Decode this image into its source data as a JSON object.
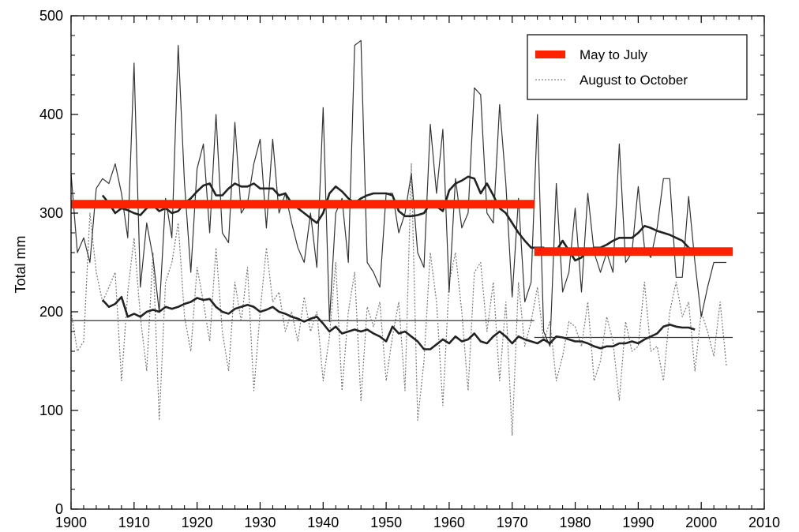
{
  "chart_data": {
    "type": "line",
    "title": "",
    "xlabel": "",
    "ylabel": "Total mm",
    "xlim": [
      1900,
      2010
    ],
    "ylim": [
      0,
      500
    ],
    "xticks": [
      1900,
      1910,
      1920,
      1930,
      1940,
      1950,
      1960,
      1970,
      1980,
      1990,
      2000,
      2010
    ],
    "yticks": [
      0,
      100,
      200,
      300,
      400,
      500
    ],
    "grid": false,
    "legend_position": "top-right",
    "legend": [
      {
        "label": "May to July",
        "style": "thick-solid",
        "color": "#ff2200"
      },
      {
        "label": "August to October",
        "style": "dotted",
        "color": "#888888"
      }
    ],
    "series": [
      {
        "name": "May to July",
        "style": "thin-solid",
        "color": "#333333",
        "x": [
          1900,
          1901,
          1902,
          1903,
          1904,
          1905,
          1906,
          1907,
          1908,
          1909,
          1910,
          1911,
          1912,
          1913,
          1914,
          1915,
          1916,
          1917,
          1918,
          1919,
          1920,
          1921,
          1922,
          1923,
          1924,
          1925,
          1926,
          1927,
          1928,
          1929,
          1930,
          1931,
          1932,
          1933,
          1934,
          1935,
          1936,
          1937,
          1938,
          1939,
          1940,
          1941,
          1942,
          1943,
          1944,
          1945,
          1946,
          1947,
          1948,
          1949,
          1950,
          1951,
          1952,
          1953,
          1954,
          1955,
          1956,
          1957,
          1958,
          1959,
          1960,
          1961,
          1962,
          1963,
          1964,
          1965,
          1966,
          1967,
          1968,
          1969,
          1970,
          1971,
          1972,
          1973,
          1974,
          1975,
          1976,
          1977,
          1978,
          1979,
          1980,
          1981,
          1982,
          1983,
          1984,
          1985,
          1986,
          1987,
          1988,
          1989,
          1990,
          1991,
          1992,
          1993,
          1994,
          1995,
          1996,
          1997,
          1998,
          1999,
          2000,
          2001,
          2002,
          2003,
          2004
        ],
        "values": [
          340,
          260,
          275,
          250,
          325,
          335,
          330,
          350,
          320,
          275,
          452,
          225,
          290,
          255,
          200,
          315,
          275,
          470,
          330,
          240,
          345,
          370,
          280,
          400,
          280,
          270,
          392,
          300,
          310,
          350,
          375,
          285,
          375,
          300,
          320,
          290,
          265,
          250,
          300,
          245,
          407,
          190,
          300,
          315,
          250,
          470,
          475,
          250,
          240,
          225,
          320,
          320,
          280,
          300,
          340,
          260,
          245,
          390,
          320,
          385,
          220,
          335,
          285,
          300,
          427,
          420,
          300,
          290,
          410,
          330,
          215,
          315,
          210,
          230,
          400,
          180,
          165,
          330,
          220,
          240,
          305,
          220,
          320,
          260,
          240,
          260,
          240,
          370,
          250,
          260,
          327,
          265,
          255,
          285,
          335,
          335,
          235,
          235,
          317,
          250,
          195,
          225,
          250,
          250,
          250
        ]
      },
      {
        "name": "August to October",
        "style": "dotted",
        "color": "#777777",
        "x": [
          1900,
          1901,
          1902,
          1903,
          1904,
          1905,
          1906,
          1907,
          1908,
          1909,
          1910,
          1911,
          1912,
          1913,
          1914,
          1915,
          1916,
          1917,
          1918,
          1919,
          1920,
          1921,
          1922,
          1923,
          1924,
          1925,
          1926,
          1927,
          1928,
          1929,
          1930,
          1931,
          1932,
          1933,
          1934,
          1935,
          1936,
          1937,
          1938,
          1939,
          1940,
          1941,
          1942,
          1943,
          1944,
          1945,
          1946,
          1947,
          1948,
          1949,
          1950,
          1951,
          1952,
          1953,
          1954,
          1955,
          1956,
          1957,
          1958,
          1959,
          1960,
          1961,
          1962,
          1963,
          1964,
          1965,
          1966,
          1967,
          1968,
          1969,
          1970,
          1971,
          1972,
          1973,
          1974,
          1975,
          1976,
          1977,
          1978,
          1979,
          1980,
          1981,
          1982,
          1983,
          1984,
          1985,
          1986,
          1987,
          1988,
          1989,
          1990,
          1991,
          1992,
          1993,
          1994,
          1995,
          1996,
          1997,
          1998,
          1999,
          2000,
          2001,
          2002,
          2003,
          2004
        ],
        "values": [
          200,
          160,
          170,
          300,
          240,
          210,
          225,
          240,
          130,
          220,
          275,
          195,
          140,
          260,
          90,
          230,
          250,
          290,
          195,
          160,
          245,
          210,
          170,
          265,
          180,
          140,
          230,
          190,
          245,
          120,
          200,
          265,
          210,
          220,
          180,
          200,
          170,
          215,
          180,
          200,
          130,
          175,
          250,
          120,
          200,
          240,
          110,
          205,
          185,
          210,
          130,
          175,
          210,
          120,
          350,
          90,
          150,
          260,
          210,
          105,
          230,
          260,
          200,
          120,
          240,
          250,
          180,
          230,
          130,
          210,
          75,
          230,
          165,
          190,
          225,
          170,
          190,
          130,
          155,
          190,
          185,
          165,
          210,
          130,
          150,
          195,
          170,
          110,
          190,
          160,
          165,
          230,
          160,
          165,
          130,
          200,
          230,
          195,
          210,
          140,
          200,
          180,
          155,
          210,
          145
        ]
      },
      {
        "name": "",
        "style": "smoothed-thick",
        "color": "#222222",
        "x": [
          1905,
          1906,
          1907,
          1908,
          1909,
          1910,
          1911,
          1912,
          1913,
          1914,
          1915,
          1916,
          1917,
          1918,
          1919,
          1920,
          1921,
          1922,
          1923,
          1924,
          1925,
          1926,
          1927,
          1928,
          1929,
          1930,
          1931,
          1932,
          1933,
          1934,
          1935,
          1936,
          1937,
          1938,
          1939,
          1940,
          1941,
          1942,
          1943,
          1944,
          1945,
          1946,
          1947,
          1948,
          1949,
          1950,
          1951,
          1952,
          1953,
          1954,
          1955,
          1956,
          1957,
          1958,
          1959,
          1960,
          1961,
          1962,
          1963,
          1964,
          1965,
          1966,
          1967,
          1968,
          1969,
          1970,
          1971,
          1972,
          1973,
          1974,
          1975,
          1976,
          1977,
          1978,
          1979,
          1980,
          1981,
          1982,
          1983,
          1984,
          1985,
          1986,
          1987,
          1988,
          1989,
          1990,
          1991,
          1992,
          1993,
          1994,
          1995,
          1996,
          1997,
          1998,
          1999
        ],
        "values": [
          318,
          310,
          300,
          305,
          303,
          300,
          298,
          305,
          308,
          302,
          305,
          300,
          302,
          310,
          315,
          322,
          328,
          330,
          318,
          318,
          325,
          330,
          327,
          327,
          330,
          325,
          325,
          325,
          318,
          320,
          310,
          305,
          300,
          295,
          290,
          300,
          320,
          327,
          322,
          315,
          310,
          315,
          318,
          320,
          320,
          320,
          318,
          302,
          297,
          297,
          298,
          300,
          310,
          307,
          302,
          323,
          330,
          333,
          337,
          335,
          320,
          330,
          318,
          305,
          300,
          290,
          280,
          272,
          265,
          265,
          265,
          258,
          262,
          272,
          262,
          252,
          255,
          262,
          265,
          265,
          268,
          272,
          275,
          275,
          275,
          280,
          287,
          285,
          282,
          280,
          278,
          275,
          272,
          265,
          262
        ]
      },
      {
        "name": "",
        "style": "smoothed-thick",
        "color": "#222222",
        "x": [
          1905,
          1906,
          1907,
          1908,
          1909,
          1910,
          1911,
          1912,
          1913,
          1914,
          1915,
          1916,
          1917,
          1918,
          1919,
          1920,
          1921,
          1922,
          1923,
          1924,
          1925,
          1926,
          1927,
          1928,
          1929,
          1930,
          1931,
          1932,
          1933,
          1934,
          1935,
          1936,
          1937,
          1938,
          1939,
          1940,
          1941,
          1942,
          1943,
          1944,
          1945,
          1946,
          1947,
          1948,
          1949,
          1950,
          1951,
          1952,
          1953,
          1954,
          1955,
          1956,
          1957,
          1958,
          1959,
          1960,
          1961,
          1962,
          1963,
          1964,
          1965,
          1966,
          1967,
          1968,
          1969,
          1970,
          1971,
          1972,
          1973,
          1974,
          1975,
          1976,
          1977,
          1978,
          1979,
          1980,
          1981,
          1982,
          1983,
          1984,
          1985,
          1986,
          1987,
          1988,
          1989,
          1990,
          1991,
          1992,
          1993,
          1994,
          1995,
          1996,
          1997,
          1998,
          1999
        ],
        "values": [
          212,
          205,
          208,
          215,
          195,
          198,
          195,
          200,
          202,
          200,
          205,
          203,
          205,
          208,
          210,
          214,
          212,
          213,
          205,
          200,
          198,
          203,
          205,
          207,
          205,
          200,
          202,
          205,
          200,
          198,
          195,
          193,
          190,
          193,
          195,
          188,
          180,
          185,
          178,
          180,
          182,
          180,
          182,
          178,
          175,
          170,
          185,
          178,
          180,
          175,
          170,
          162,
          162,
          167,
          172,
          168,
          175,
          170,
          172,
          178,
          170,
          168,
          175,
          180,
          175,
          168,
          175,
          172,
          170,
          168,
          172,
          168,
          175,
          174,
          172,
          170,
          170,
          168,
          165,
          163,
          165,
          165,
          168,
          168,
          170,
          168,
          172,
          175,
          178,
          185,
          187,
          185,
          184,
          184,
          182
        ]
      },
      {
        "name": "",
        "style": "step-mean-thick",
        "color": "#ff2200",
        "segments": [
          {
            "x": [
              1900,
              1973.5
            ],
            "y": 309
          },
          {
            "x": [
              1973.5,
              2005
            ],
            "y": 261
          }
        ]
      },
      {
        "name": "",
        "style": "step-mean-thin",
        "color": "#333333",
        "segments": [
          {
            "x": [
              1900,
              1973.5
            ],
            "y": 191
          },
          {
            "x": [
              1973.5,
              2005
            ],
            "y": 174
          }
        ]
      }
    ]
  }
}
